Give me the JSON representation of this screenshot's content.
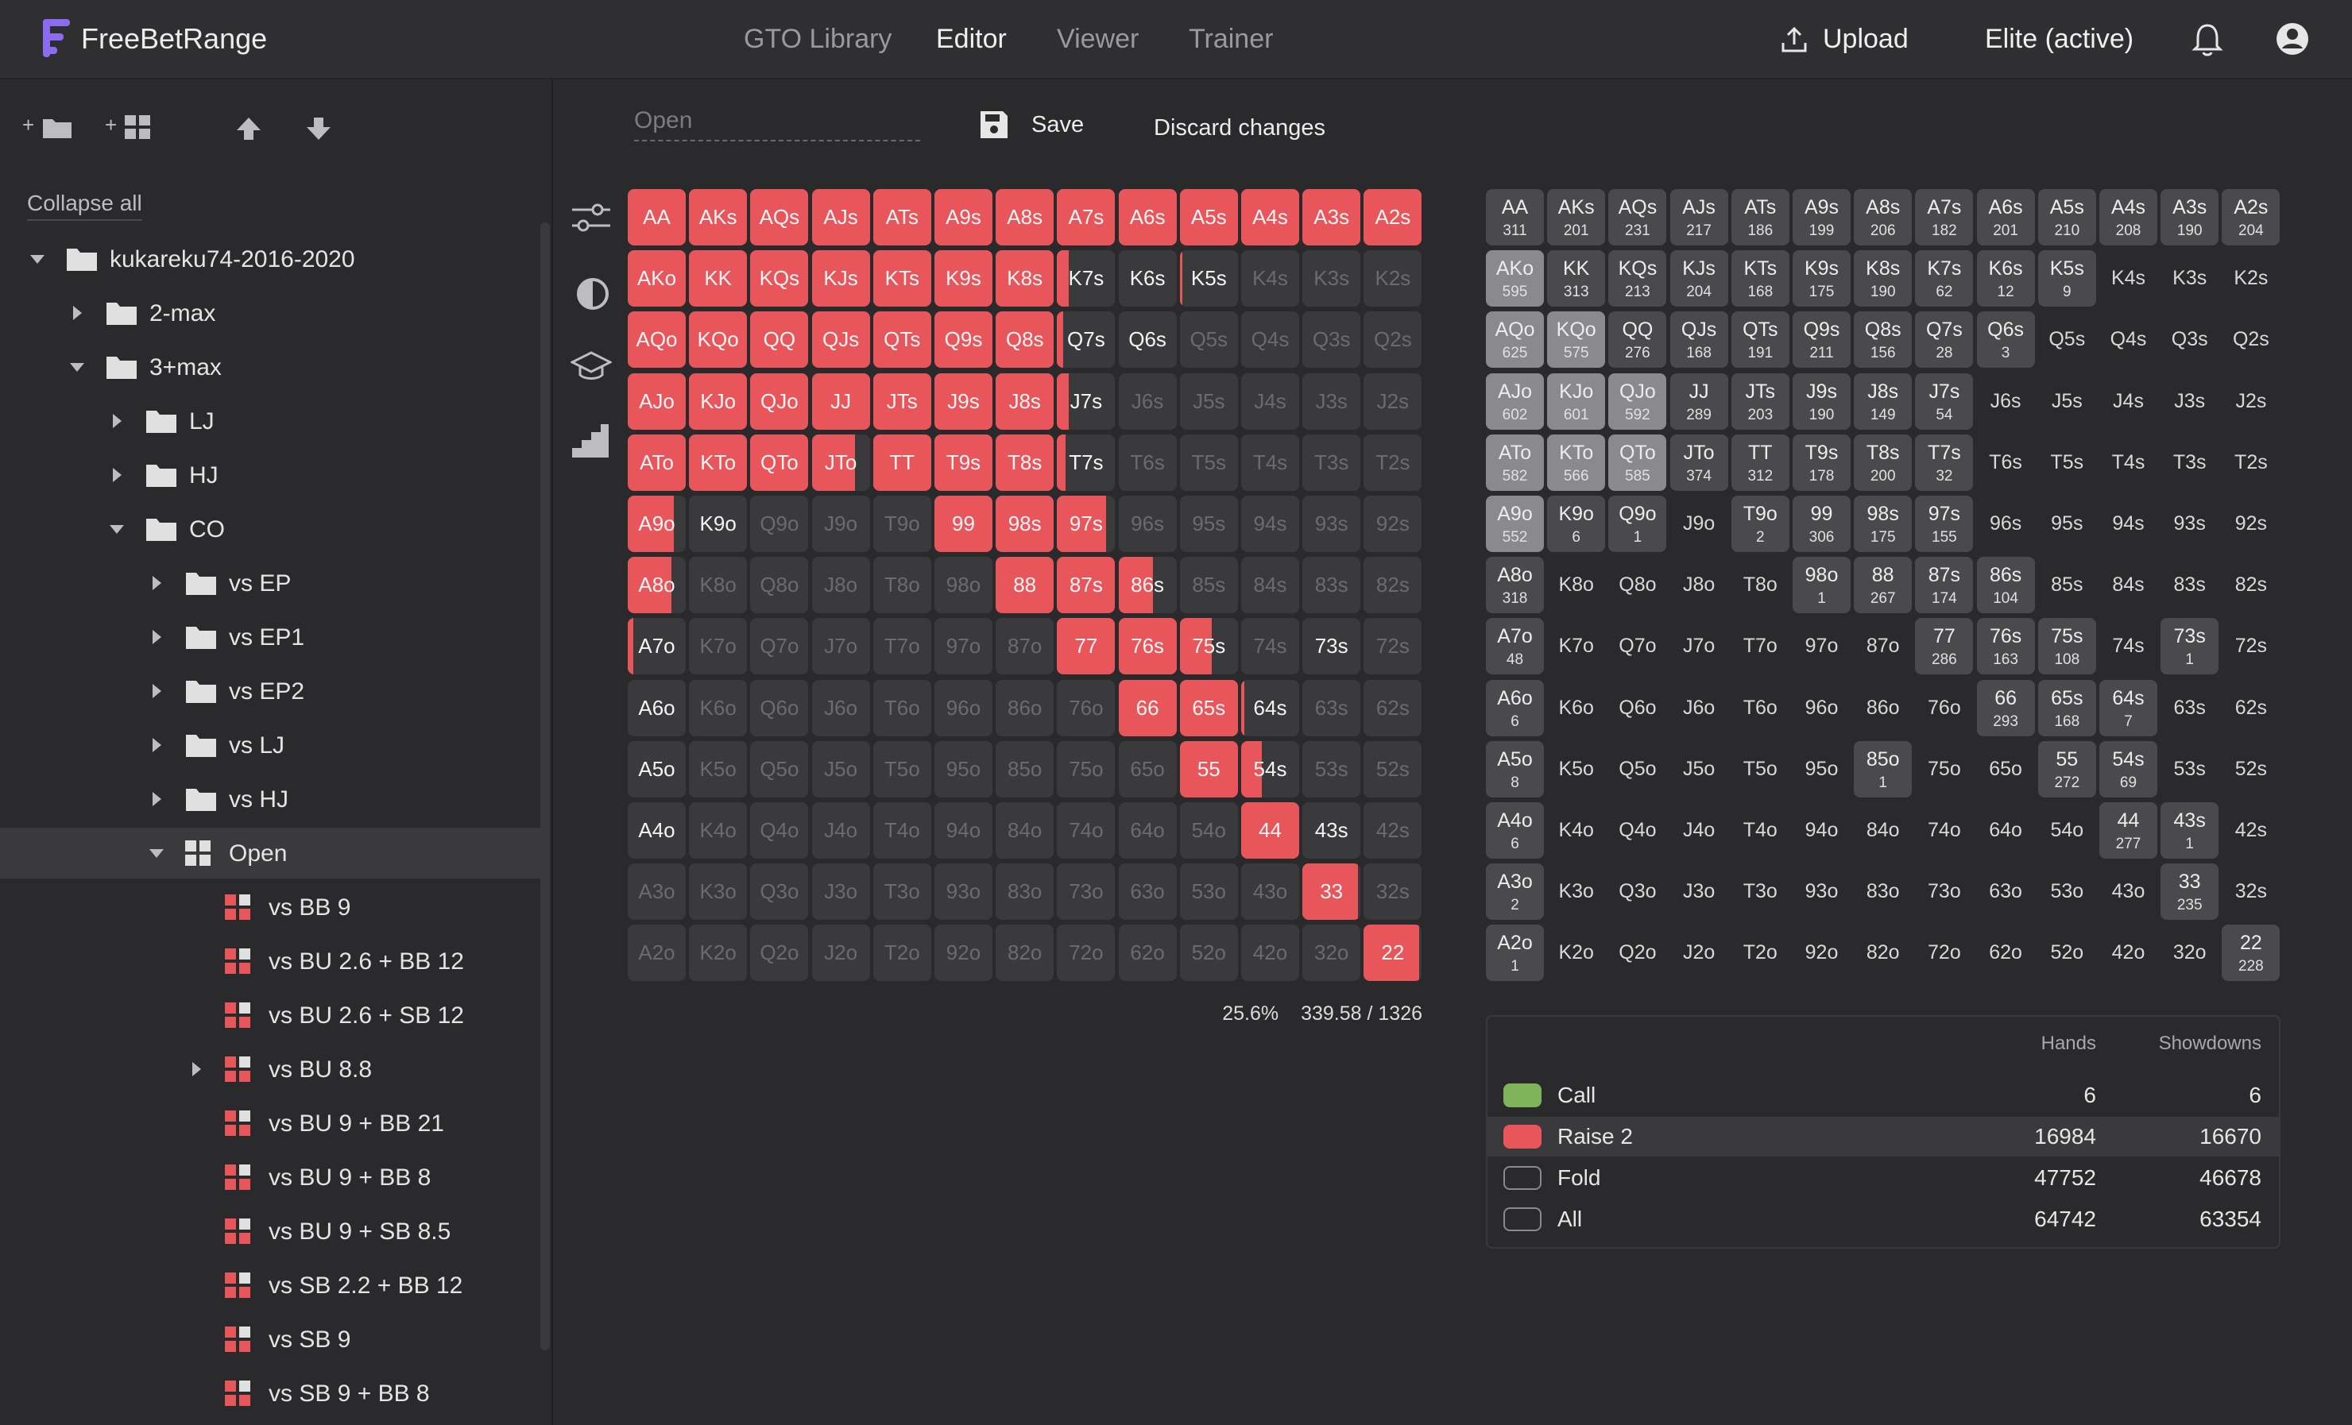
{
  "header": {
    "logo_text": "FreeBetRange",
    "nav": [
      "GTO Library",
      "Editor",
      "Viewer",
      "Trainer"
    ],
    "active_nav": "Editor",
    "upload_label": "Upload",
    "plan_label": "Elite (active)"
  },
  "sidebar": {
    "tool_new_folder": "+",
    "tool_new_range": "+",
    "collapse_all": "Collapse all",
    "tree": [
      {
        "label": "kukareku74-2016-2020",
        "depth": 0,
        "type": "folder",
        "caret": "down"
      },
      {
        "label": "2-max",
        "depth": 1,
        "type": "folder",
        "caret": "right"
      },
      {
        "label": "3+max",
        "depth": 1,
        "type": "folder",
        "caret": "down"
      },
      {
        "label": "LJ",
        "depth": 2,
        "type": "folder",
        "caret": "right"
      },
      {
        "label": "HJ",
        "depth": 2,
        "type": "folder",
        "caret": "right"
      },
      {
        "label": "CO",
        "depth": 2,
        "type": "folder",
        "caret": "down"
      },
      {
        "label": "vs EP",
        "depth": 3,
        "type": "folder",
        "caret": "right"
      },
      {
        "label": "vs EP1",
        "depth": 3,
        "type": "folder",
        "caret": "right"
      },
      {
        "label": "vs EP2",
        "depth": 3,
        "type": "folder",
        "caret": "right"
      },
      {
        "label": "vs LJ",
        "depth": 3,
        "type": "folder",
        "caret": "right"
      },
      {
        "label": "vs HJ",
        "depth": 3,
        "type": "folder",
        "caret": "right"
      },
      {
        "label": "Open",
        "depth": 3,
        "type": "grid",
        "caret": "down",
        "selected": true
      },
      {
        "label": "vs BB 9",
        "depth": 4,
        "type": "range",
        "caret": ""
      },
      {
        "label": "vs BU 2.6 + BB 12",
        "depth": 4,
        "type": "range",
        "caret": ""
      },
      {
        "label": "vs BU 2.6 + SB 12",
        "depth": 4,
        "type": "range",
        "caret": ""
      },
      {
        "label": "vs BU 8.8",
        "depth": 4,
        "type": "range",
        "caret": "right"
      },
      {
        "label": "vs BU 9 + BB 21",
        "depth": 4,
        "type": "range",
        "caret": ""
      },
      {
        "label": "vs BU 9 + BB 8",
        "depth": 4,
        "type": "range",
        "caret": ""
      },
      {
        "label": "vs BU 9 + SB 8.5",
        "depth": 4,
        "type": "range",
        "caret": ""
      },
      {
        "label": "vs SB 2.2 + BB 12",
        "depth": 4,
        "type": "range",
        "caret": ""
      },
      {
        "label": "vs SB 9",
        "depth": 4,
        "type": "range",
        "caret": ""
      },
      {
        "label": "vs SB 9 + BB 8",
        "depth": 4,
        "type": "range",
        "caret": ""
      }
    ]
  },
  "editor": {
    "name_placeholder": "Open",
    "save_label": "Save",
    "discard_label": "Discard changes",
    "percent": "25.6%",
    "combos": "339.58 / 1326"
  },
  "range_grid": {
    "hands": [
      [
        "AA",
        "AKs",
        "AQs",
        "AJs",
        "ATs",
        "A9s",
        "A8s",
        "A7s",
        "A6s",
        "A5s",
        "A4s",
        "A3s",
        "A2s"
      ],
      [
        "AKo",
        "KK",
        "KQs",
        "KJs",
        "KTs",
        "K9s",
        "K8s",
        "K7s",
        "K6s",
        "K5s",
        "K4s",
        "K3s",
        "K2s"
      ],
      [
        "AQo",
        "KQo",
        "QQ",
        "QJs",
        "QTs",
        "Q9s",
        "Q8s",
        "Q7s",
        "Q6s",
        "Q5s",
        "Q4s",
        "Q3s",
        "Q2s"
      ],
      [
        "AJo",
        "KJo",
        "QJo",
        "JJ",
        "JTs",
        "J9s",
        "J8s",
        "J7s",
        "J6s",
        "J5s",
        "J4s",
        "J3s",
        "J2s"
      ],
      [
        "ATo",
        "KTo",
        "QTo",
        "JTo",
        "TT",
        "T9s",
        "T8s",
        "T7s",
        "T6s",
        "T5s",
        "T4s",
        "T3s",
        "T2s"
      ],
      [
        "A9o",
        "K9o",
        "Q9o",
        "J9o",
        "T9o",
        "99",
        "98s",
        "97s",
        "96s",
        "95s",
        "94s",
        "93s",
        "92s"
      ],
      [
        "A8o",
        "K8o",
        "Q8o",
        "J8o",
        "T8o",
        "98o",
        "88",
        "87s",
        "86s",
        "85s",
        "84s",
        "83s",
        "82s"
      ],
      [
        "A7o",
        "K7o",
        "Q7o",
        "J7o",
        "T7o",
        "97o",
        "87o",
        "77",
        "76s",
        "75s",
        "74s",
        "73s",
        "72s"
      ],
      [
        "A6o",
        "K6o",
        "Q6o",
        "J6o",
        "T6o",
        "96o",
        "86o",
        "76o",
        "66",
        "65s",
        "64s",
        "63s",
        "62s"
      ],
      [
        "A5o",
        "K5o",
        "Q5o",
        "J5o",
        "T5o",
        "95o",
        "85o",
        "75o",
        "65o",
        "55",
        "54s",
        "53s",
        "52s"
      ],
      [
        "A4o",
        "K4o",
        "Q4o",
        "J4o",
        "T4o",
        "94o",
        "84o",
        "74o",
        "64o",
        "54o",
        "44",
        "43s",
        "42s"
      ],
      [
        "A3o",
        "K3o",
        "Q3o",
        "J3o",
        "T3o",
        "93o",
        "83o",
        "73o",
        "63o",
        "53o",
        "43o",
        "33",
        "32s"
      ],
      [
        "A2o",
        "K2o",
        "Q2o",
        "J2o",
        "T2o",
        "92o",
        "82o",
        "72o",
        "62o",
        "52o",
        "42o",
        "32o",
        "22"
      ]
    ],
    "raise_fraction": [
      [
        1,
        1,
        1,
        1,
        1,
        1,
        1,
        1,
        1,
        1,
        1,
        1,
        1
      ],
      [
        1,
        1,
        1,
        1,
        1,
        1,
        1,
        0.2,
        0,
        0.05,
        0,
        0,
        0
      ],
      [
        1,
        1,
        1,
        1,
        1,
        1,
        1,
        0.1,
        0,
        0,
        0,
        0,
        0
      ],
      [
        1,
        1,
        1,
        1,
        1,
        1,
        1,
        0.2,
        0,
        0,
        0,
        0,
        0
      ],
      [
        1,
        1,
        1,
        0.75,
        1,
        1,
        1,
        0.15,
        0,
        0,
        0,
        0,
        0
      ],
      [
        0.8,
        0,
        0,
        0,
        0,
        1,
        1,
        0.85,
        0,
        0,
        0,
        0,
        0
      ],
      [
        0.75,
        0,
        0,
        0,
        0,
        0,
        1,
        1,
        0.6,
        0,
        0,
        0,
        0
      ],
      [
        0.1,
        0,
        0,
        0,
        0,
        0,
        0,
        1,
        1,
        0.55,
        0,
        0,
        0
      ],
      [
        0,
        0,
        0,
        0,
        0,
        0,
        0,
        0,
        1,
        1,
        0.05,
        0,
        0
      ],
      [
        0,
        0,
        0,
        0,
        0,
        0,
        0,
        0,
        0,
        1,
        0.35,
        0,
        0
      ],
      [
        0,
        0,
        0,
        0,
        0,
        0,
        0,
        0,
        0,
        0,
        1,
        0,
        0
      ],
      [
        0,
        0,
        0,
        0,
        0,
        0,
        0,
        0,
        0,
        0,
        0,
        0.95,
        0
      ],
      [
        0,
        0,
        0,
        0,
        0,
        0,
        0,
        0,
        0,
        0,
        0,
        0,
        0.95
      ]
    ],
    "bright": [
      [
        1,
        1,
        1,
        1,
        1,
        1,
        1,
        1,
        1,
        1,
        1,
        1,
        1
      ],
      [
        1,
        1,
        1,
        1,
        1,
        1,
        1,
        1,
        1,
        1,
        0,
        0,
        0
      ],
      [
        1,
        1,
        1,
        1,
        1,
        1,
        1,
        1,
        1,
        0,
        0,
        0,
        0
      ],
      [
        1,
        1,
        1,
        1,
        1,
        1,
        1,
        1,
        0,
        0,
        0,
        0,
        0
      ],
      [
        1,
        1,
        1,
        1,
        1,
        1,
        1,
        1,
        0,
        0,
        0,
        0,
        0
      ],
      [
        1,
        1,
        0,
        0,
        0,
        1,
        1,
        1,
        0,
        0,
        0,
        0,
        0
      ],
      [
        1,
        0,
        0,
        0,
        0,
        0,
        1,
        1,
        1,
        0,
        0,
        0,
        0
      ],
      [
        1,
        0,
        0,
        0,
        0,
        0,
        0,
        1,
        1,
        1,
        0,
        1,
        0
      ],
      [
        1,
        0,
        0,
        0,
        0,
        0,
        0,
        0,
        1,
        1,
        1,
        0,
        0
      ],
      [
        1,
        0,
        0,
        0,
        0,
        0,
        0,
        0,
        0,
        1,
        1,
        0,
        0
      ],
      [
        1,
        0,
        0,
        0,
        0,
        0,
        0,
        0,
        0,
        0,
        1,
        1,
        0
      ],
      [
        0,
        0,
        0,
        0,
        0,
        0,
        0,
        0,
        0,
        0,
        0,
        1,
        0
      ],
      [
        0,
        0,
        0,
        0,
        0,
        0,
        0,
        0,
        0,
        0,
        0,
        0,
        1
      ]
    ]
  },
  "count_grid": {
    "counts": [
      [
        "311",
        "201",
        "231",
        "217",
        "186",
        "199",
        "206",
        "182",
        "201",
        "210",
        "208",
        "190",
        "204"
      ],
      [
        "595",
        "313",
        "213",
        "204",
        "168",
        "175",
        "190",
        "62",
        "12",
        "9",
        "",
        "",
        ""
      ],
      [
        "625",
        "575",
        "276",
        "168",
        "191",
        "211",
        "156",
        "28",
        "3",
        "",
        "",
        "",
        ""
      ],
      [
        "602",
        "601",
        "592",
        "289",
        "203",
        "190",
        "149",
        "54",
        "",
        "",
        "",
        "",
        ""
      ],
      [
        "582",
        "566",
        "585",
        "374",
        "312",
        "178",
        "200",
        "32",
        "",
        "",
        "",
        "",
        ""
      ],
      [
        "552",
        "6",
        "1",
        "",
        "2",
        "306",
        "175",
        "155",
        "",
        "",
        "",
        "",
        ""
      ],
      [
        "318",
        "",
        "",
        "",
        "",
        "1",
        "267",
        "174",
        "104",
        "",
        "",
        "",
        ""
      ],
      [
        "48",
        "",
        "",
        "",
        "",
        "",
        "",
        "286",
        "163",
        "108",
        "",
        "1",
        ""
      ],
      [
        "6",
        "",
        "",
        "",
        "",
        "",
        "",
        "",
        "293",
        "168",
        "7",
        "",
        ""
      ],
      [
        "8",
        "",
        "",
        "",
        "",
        "",
        "1",
        "",
        "",
        "272",
        "69",
        "",
        ""
      ],
      [
        "6",
        "",
        "",
        "",
        "",
        "",
        "",
        "",
        "",
        "",
        "277",
        "1",
        ""
      ],
      [
        "2",
        "",
        "",
        "",
        "",
        "",
        "",
        "",
        "",
        "",
        "",
        "235",
        ""
      ],
      [
        "1",
        "",
        "",
        "",
        "",
        "",
        "",
        "",
        "",
        "",
        "",
        "",
        "228"
      ]
    ],
    "highlight": [
      [
        0,
        0,
        0,
        0,
        0,
        0,
        0,
        0,
        0,
        0,
        0,
        0,
        0
      ],
      [
        1,
        0,
        0,
        0,
        0,
        0,
        0,
        0,
        0,
        0,
        0,
        0,
        0
      ],
      [
        1,
        1,
        0,
        0,
        0,
        0,
        0,
        0,
        0,
        0,
        0,
        0,
        0
      ],
      [
        1,
        1,
        1,
        0,
        0,
        0,
        0,
        0,
        0,
        0,
        0,
        0,
        0
      ],
      [
        1,
        1,
        1,
        0,
        0,
        0,
        0,
        0,
        0,
        0,
        0,
        0,
        0
      ],
      [
        1,
        0,
        0,
        0,
        0,
        0,
        0,
        0,
        0,
        0,
        0,
        0,
        0
      ],
      [
        0,
        0,
        0,
        0,
        0,
        0,
        0,
        0,
        0,
        0,
        0,
        0,
        0
      ],
      [
        0,
        0,
        0,
        0,
        0,
        0,
        0,
        0,
        0,
        0,
        0,
        0,
        0
      ],
      [
        0,
        0,
        0,
        0,
        0,
        0,
        0,
        0,
        0,
        0,
        0,
        0,
        0
      ],
      [
        0,
        0,
        0,
        0,
        0,
        0,
        0,
        0,
        0,
        0,
        0,
        0,
        0
      ],
      [
        0,
        0,
        0,
        0,
        0,
        0,
        0,
        0,
        0,
        0,
        0,
        0,
        0
      ],
      [
        0,
        0,
        0,
        0,
        0,
        0,
        0,
        0,
        0,
        0,
        0,
        0,
        0
      ],
      [
        0,
        0,
        0,
        0,
        0,
        0,
        0,
        0,
        0,
        0,
        0,
        0,
        0
      ]
    ]
  },
  "legend": {
    "col_hands": "Hands",
    "col_showdowns": "Showdowns",
    "rows": [
      {
        "name": "Call",
        "hands": "6",
        "showdowns": "6",
        "color": "#7fb35a",
        "selected": false
      },
      {
        "name": "Raise 2",
        "hands": "16984",
        "showdowns": "16670",
        "color": "#e8565b",
        "selected": true
      },
      {
        "name": "Fold",
        "hands": "47752",
        "showdowns": "46678",
        "color": "",
        "selected": false
      },
      {
        "name": "All",
        "hands": "64742",
        "showdowns": "63354",
        "color": "",
        "selected": false
      }
    ]
  },
  "colors": {
    "raise": "#e8565b",
    "call": "#7fb35a",
    "accent": "#8b6cf0"
  }
}
